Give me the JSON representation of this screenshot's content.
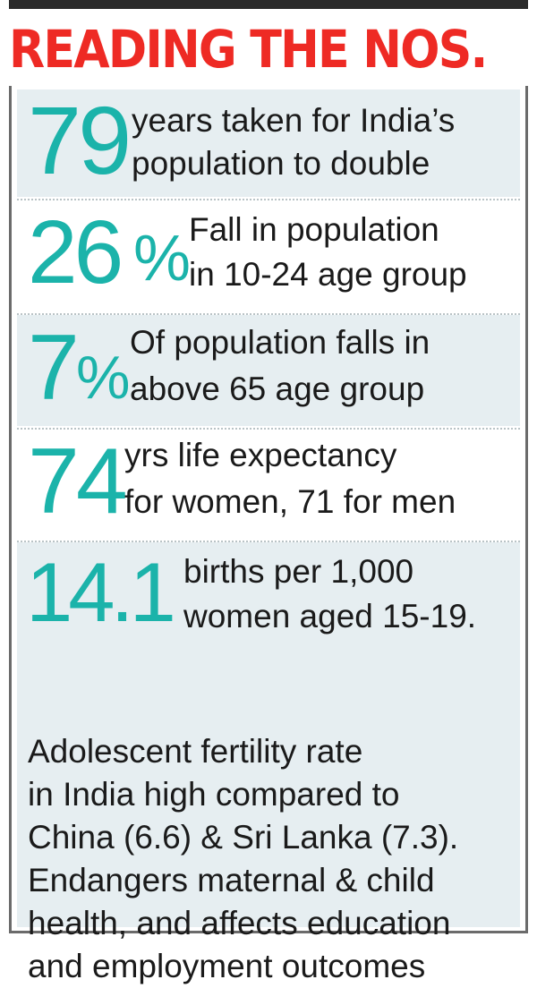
{
  "title": "READING THE NOS.",
  "stats": [
    {
      "number": "79",
      "suffix": "",
      "line1": "years taken for India’s",
      "line2": "population to double"
    },
    {
      "number": "26",
      "suffix": "%",
      "line1": "Fall in population",
      "line2": "in 10-24 age group"
    },
    {
      "number": "7",
      "suffix": "%",
      "line1": "Of population falls in",
      "line2": "above 65 age group"
    },
    {
      "number": "74",
      "suffix": "",
      "line1": "yrs life expectancy",
      "line2": "for women, 71 for men"
    },
    {
      "number": "14.1",
      "suffix": "",
      "line1": "births per 1,000",
      "line2": "women aged 15-19.",
      "more_lines": [
        "Adolescent fertility rate",
        "in India high compared to",
        "China (6.6) & Sri Lanka (7.3).",
        "Endangers maternal & child",
        "health, and affects education",
        "and employment outcomes"
      ]
    }
  ],
  "colors": {
    "title": "#ee2a24",
    "figure": "#1bb3aa",
    "shade": "#e6eef1",
    "border": "#6b6b6b"
  }
}
